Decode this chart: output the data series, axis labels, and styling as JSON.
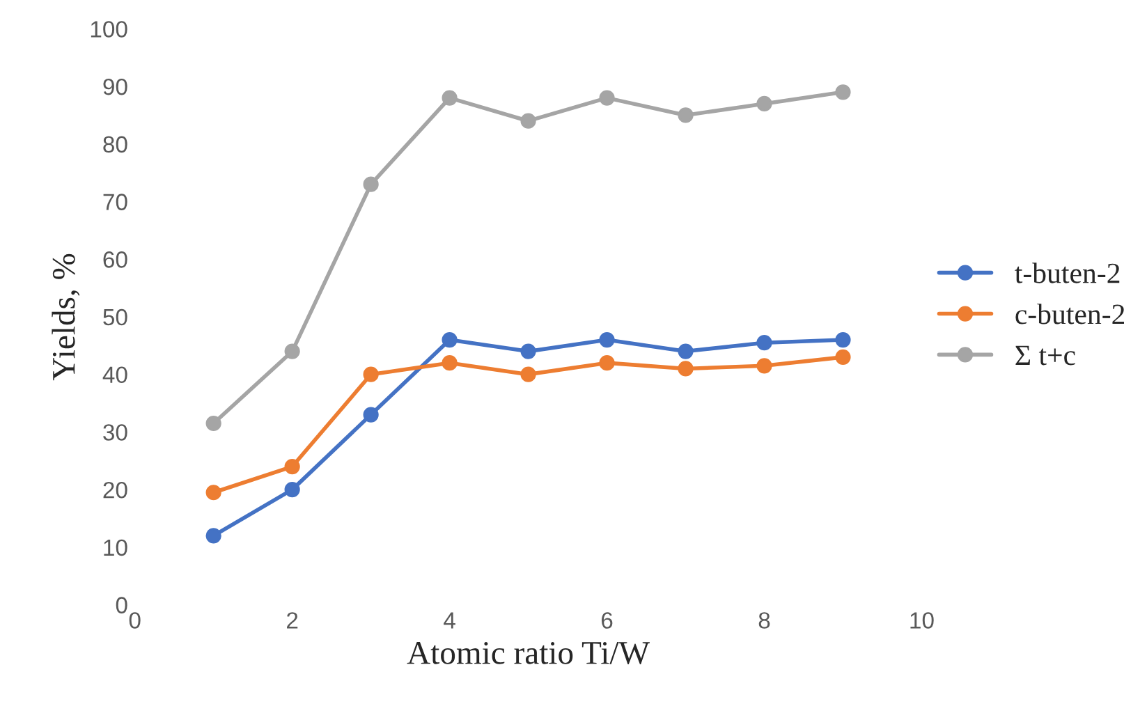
{
  "chart_data": {
    "type": "line",
    "xlabel": "Atomic ratio Ti/W",
    "ylabel": "Yields, %",
    "x": [
      1,
      2,
      3,
      4,
      5,
      6,
      7,
      8,
      9
    ],
    "series": [
      {
        "name": "t-buten-2",
        "color": "#4472c4",
        "values": [
          12,
          20,
          33,
          46,
          44,
          46,
          44,
          45.5,
          46
        ]
      },
      {
        "name": "c-buten-2",
        "color": "#ed7d31",
        "values": [
          19.5,
          24,
          40,
          42,
          40,
          42,
          41,
          41.5,
          43
        ]
      },
      {
        "name": "Σ t+c",
        "color": "#a5a5a5",
        "values": [
          31.5,
          44,
          73,
          88,
          84,
          88,
          85,
          87,
          89
        ]
      }
    ],
    "xlim": [
      0,
      10
    ],
    "xticks": [
      0,
      2,
      4,
      6,
      8,
      10
    ],
    "ylim": [
      0,
      100
    ],
    "yticks": [
      0,
      10,
      20,
      30,
      40,
      50,
      60,
      70,
      80,
      90,
      100
    ],
    "grid": false,
    "legend": "right",
    "marker": "circle",
    "line_style": "solid"
  }
}
